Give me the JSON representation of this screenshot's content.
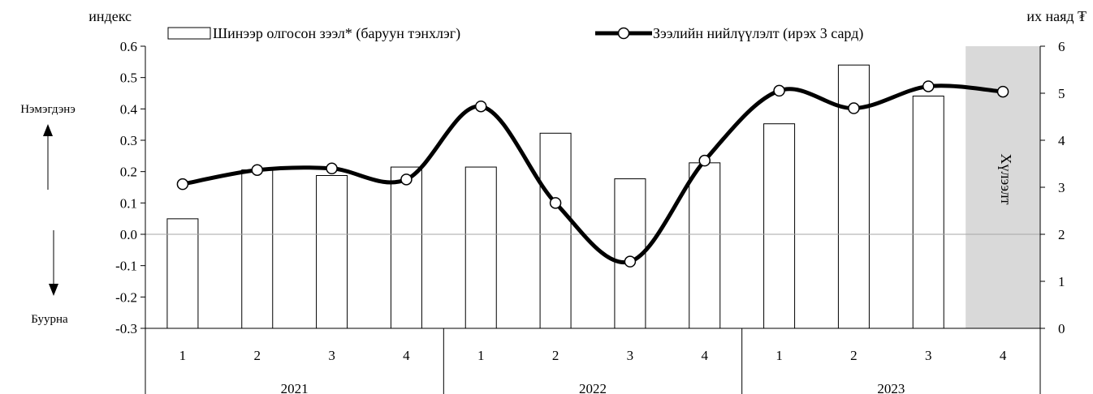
{
  "chart_data": {
    "type": "bar",
    "title": "",
    "left_axis": {
      "label": "индекс",
      "ylim": [
        -0.3,
        0.6
      ],
      "ticks": [
        "0.6",
        "0.5",
        "0.4",
        "0.3",
        "0.2",
        "0.1",
        "0.0",
        "-0.1",
        "-0.2",
        "-0.3"
      ]
    },
    "right_axis": {
      "label": "их наяд ₮",
      "ylim": [
        0,
        6
      ],
      "ticks": [
        "6",
        "5",
        "4",
        "3",
        "2",
        "1",
        "0"
      ]
    },
    "categories": [
      "1",
      "2",
      "3",
      "4",
      "1",
      "2",
      "3",
      "4",
      "1",
      "2",
      "3",
      "4"
    ],
    "groups": [
      {
        "label": "2021",
        "count": 4
      },
      {
        "label": "2022",
        "count": 4
      },
      {
        "label": "2023",
        "count": 4
      }
    ],
    "series": [
      {
        "name": "Шинээр олгосон зээл* (баруун тэнхлэг)",
        "type": "bar",
        "axis": "right",
        "values": [
          2.33,
          3.37,
          3.25,
          3.43,
          3.43,
          4.15,
          3.18,
          3.52,
          4.35,
          5.6,
          4.94,
          null
        ]
      },
      {
        "name": "Зээлийн нийлүүлэлт (ирэх 3 сард)",
        "type": "line",
        "axis": "left",
        "values": [
          0.16,
          0.205,
          0.21,
          0.175,
          0.408,
          0.1,
          -0.087,
          0.235,
          0.458,
          0.402,
          0.472,
          0.455
        ]
      }
    ],
    "shaded_region": {
      "category_index": 11,
      "label": "Хүлээлт"
    },
    "annotations": {
      "up": "Нэмэгдэнэ",
      "down": "Буурна"
    },
    "grid": false,
    "legend_position": "top"
  },
  "colors": {
    "line": "#000000",
    "bar_fill": "#ffffff",
    "shade": "#d9d9d9",
    "zero_line": "#a6a6a6"
  }
}
